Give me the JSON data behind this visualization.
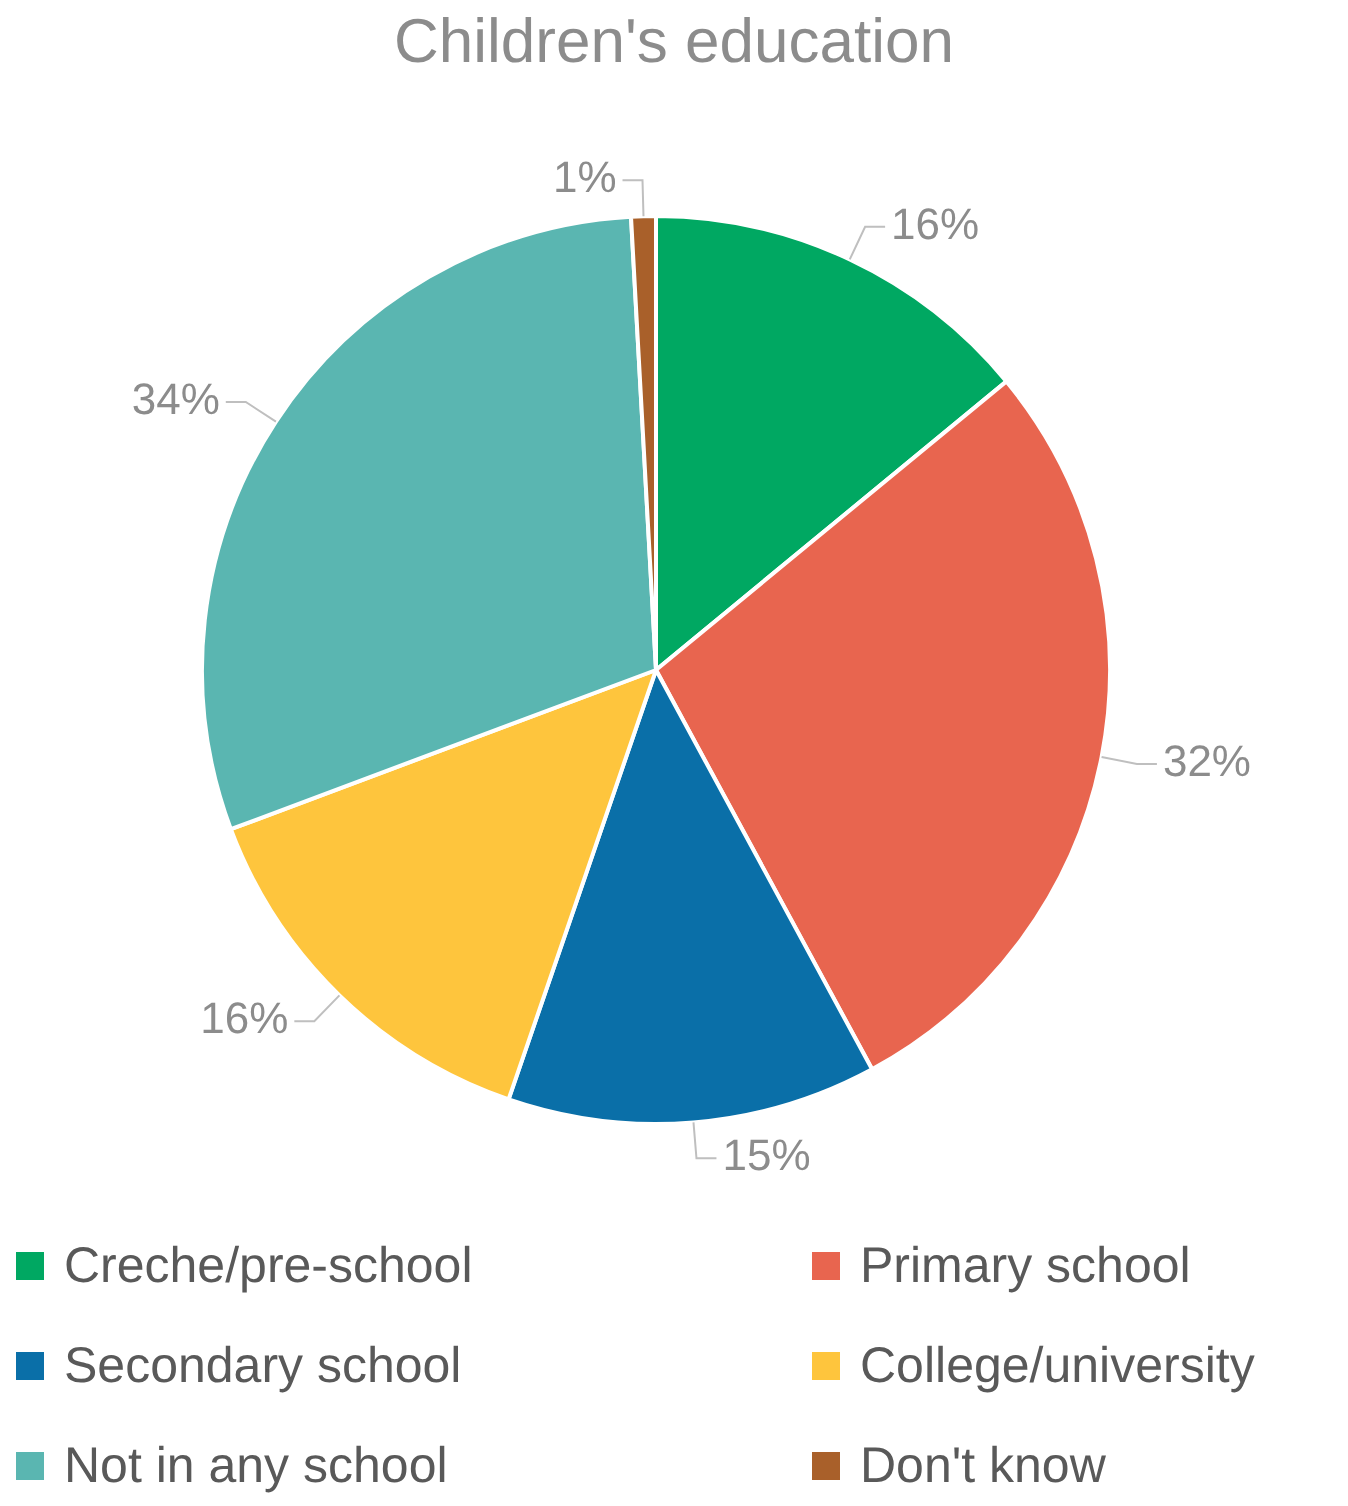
{
  "chart_data": {
    "type": "pie",
    "title": "Children's education",
    "categories": [
      "Creche/pre-school",
      "Primary school",
      "Secondary school",
      "College/university",
      "Not in any school",
      "Don't know"
    ],
    "values": [
      16,
      32,
      15,
      16,
      34,
      1
    ],
    "value_labels": [
      "16%",
      "32%",
      "15%",
      "16%",
      "34%",
      "1%"
    ],
    "colors": [
      "#00a862",
      "#e8654f",
      "#0a6fa8",
      "#fec53d",
      "#5ab6b1",
      "#a9602a"
    ],
    "legend": "bottom"
  }
}
